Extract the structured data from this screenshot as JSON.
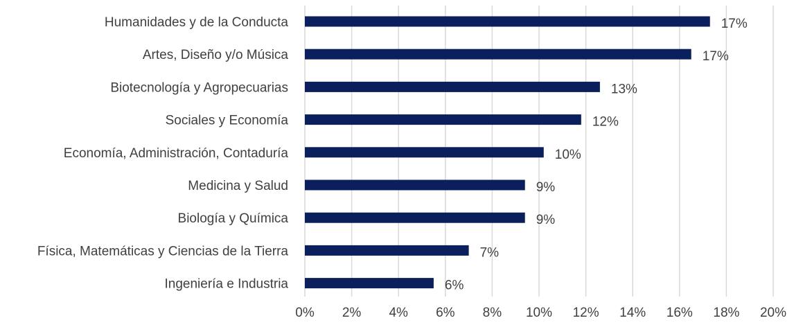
{
  "chart_data": {
    "type": "bar",
    "orientation": "horizontal",
    "categories": [
      "Humanidades y de la Conducta",
      "Artes, Diseño y/o Música",
      "Biotecnología y Agropecuarias",
      "Sociales y Economía",
      "Economía, Administración, Contaduría",
      "Medicina y Salud",
      "Biología y Química",
      "Física, Matemáticas y Ciencias de la Tierra",
      "Ingeniería e Industria"
    ],
    "values": [
      17.3,
      16.5,
      12.6,
      11.8,
      10.2,
      9.4,
      9.4,
      7.0,
      5.5
    ],
    "data_labels": [
      "17%",
      "17%",
      "13%",
      "12%",
      "10%",
      "9%",
      "9%",
      "7%",
      "6%"
    ],
    "xlim": [
      0,
      20
    ],
    "xticks": [
      0,
      2,
      4,
      6,
      8,
      10,
      12,
      14,
      16,
      18,
      20
    ],
    "xtick_labels": [
      "0%",
      "2%",
      "4%",
      "6%",
      "8%",
      "10%",
      "12%",
      "14%",
      "16%",
      "18%",
      "20%"
    ],
    "title": "",
    "xlabel": "",
    "ylabel": "",
    "grid": true,
    "legend": "none",
    "bar_color": "#0a1f5c",
    "grid_color": "#d9d9d9",
    "text_color": "#404040"
  }
}
